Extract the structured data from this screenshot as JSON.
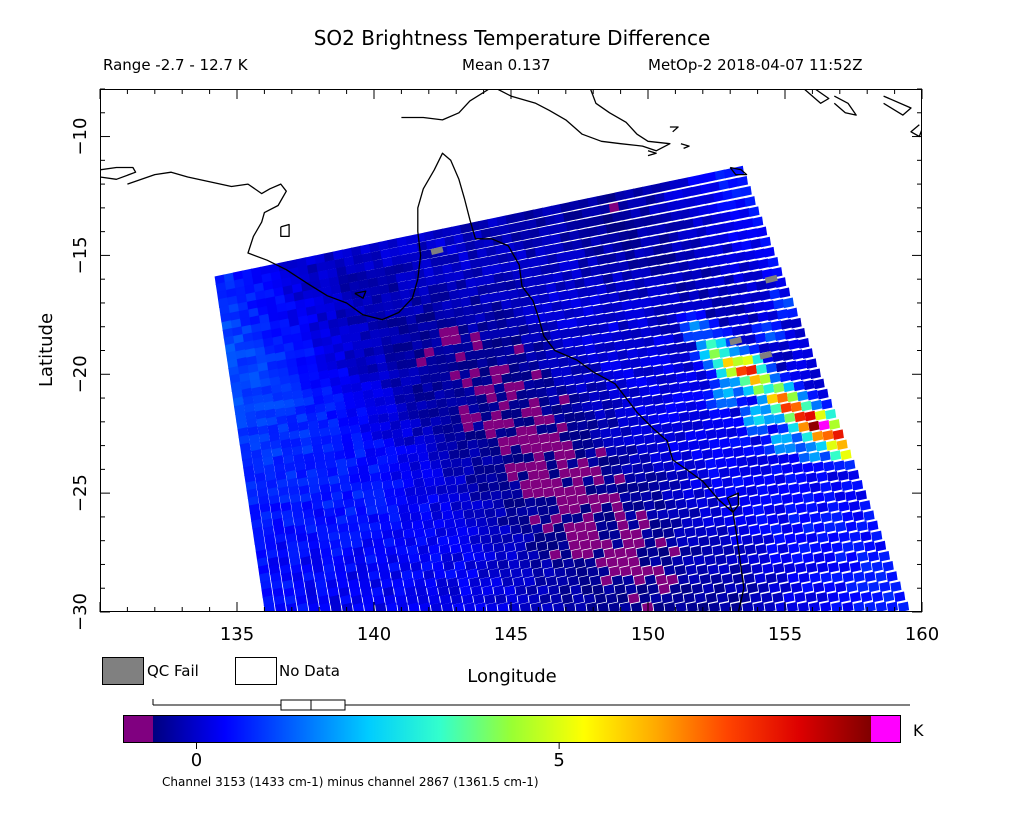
{
  "header": {
    "title": "SO2 Brightness Temperature Difference",
    "range": "Range -2.7 - 12.7 K",
    "mean": "Mean 0.137",
    "satellite": "MetOp-2 2018-04-07 11:52Z"
  },
  "legend": {
    "qc_fail_label": "QC Fail",
    "no_data_label": "No Data",
    "qc_fail_color": "#808080",
    "no_data_color": "#ffffff"
  },
  "colorbar": {
    "unit": "K",
    "caption": "Channel 3153 (1433 cm-1) minus channel 2867 (1361.5 cm-1)",
    "vmin": -0.6,
    "vmax": 9.3,
    "under_color": "#800080",
    "over_color": "#ff00ff",
    "stops": [
      "#000080",
      "#0000ff",
      "#0066ff",
      "#00ccff",
      "#33ffcc",
      "#99ff33",
      "#ffff00",
      "#ffaa00",
      "#ff4400",
      "#dd0000",
      "#800000"
    ],
    "ticks": [
      0,
      5
    ],
    "tick_labels": [
      "0",
      "5"
    ]
  },
  "chart_data": {
    "type": "heatmap",
    "title": "SO2 Brightness Temperature Difference",
    "xlabel": "Longitude",
    "ylabel": "Latitude",
    "xlim": [
      130,
      160
    ],
    "ylim": [
      -30,
      -8
    ],
    "xticks": [
      135,
      140,
      145,
      150,
      155,
      160
    ],
    "yticks": [
      -10,
      -15,
      -20,
      -25,
      -30
    ],
    "value_range_K": [
      -2.7,
      12.7
    ],
    "mean_K": 0.137,
    "swath_corners_lonlat": [
      [
        134.2,
        -15.9
      ],
      [
        153.4,
        -11.2
      ],
      [
        159.6,
        -30
      ],
      [
        136.0,
        -30
      ]
    ],
    "background_K": {
      "west_edge": 0.8,
      "center": -0.5,
      "east_edge": 0.4
    },
    "so2_plume_K": [
      {
        "lon": 151.8,
        "lat": -18.0,
        "value": 1.5
      },
      {
        "lon": 152.5,
        "lat": -19.0,
        "value": 4.5
      },
      {
        "lon": 153.0,
        "lat": -19.6,
        "value": 6.0
      },
      {
        "lon": 153.6,
        "lat": -19.8,
        "value": 8.5
      },
      {
        "lon": 154.0,
        "lat": -20.3,
        "value": 6.5
      },
      {
        "lon": 154.8,
        "lat": -21.0,
        "value": 7.5
      },
      {
        "lon": 155.2,
        "lat": -21.4,
        "value": 8.0
      },
      {
        "lon": 155.8,
        "lat": -21.9,
        "value": 9.5
      },
      {
        "lon": 156.3,
        "lat": -22.2,
        "value": 11.0
      },
      {
        "lon": 156.8,
        "lat": -22.6,
        "value": 8.5
      },
      {
        "lon": 157.2,
        "lat": -23.1,
        "value": 7.0
      },
      {
        "lon": 152.8,
        "lat": -20.8,
        "value": 2.5
      },
      {
        "lon": 154.0,
        "lat": -21.8,
        "value": 3.0
      },
      {
        "lon": 155.0,
        "lat": -22.8,
        "value": 2.5
      },
      {
        "lon": 156.0,
        "lat": -23.4,
        "value": 2.0
      },
      {
        "lon": 154.4,
        "lat": -18.2,
        "value": 1.2
      },
      {
        "lon": 155.0,
        "lat": -17.0,
        "value": 1.0
      }
    ],
    "qc_fail_pixels": [
      {
        "lon": 154.5,
        "lat": -16.0
      },
      {
        "lon": 153.2,
        "lat": -18.6
      },
      {
        "lon": 154.3,
        "lat": -19.2
      },
      {
        "lon": 142.3,
        "lat": -14.8
      }
    ],
    "coastline_lonlat": [
      [
        [
          131.0,
          -12.0
        ],
        [
          132.0,
          -11.6
        ],
        [
          132.6,
          -11.5
        ],
        [
          133.2,
          -11.7
        ],
        [
          134.0,
          -11.9
        ],
        [
          134.8,
          -12.1
        ],
        [
          135.4,
          -12.0
        ],
        [
          135.9,
          -12.4
        ],
        [
          136.2,
          -12.2
        ],
        [
          136.6,
          -12.0
        ],
        [
          136.8,
          -12.3
        ],
        [
          136.5,
          -12.9
        ],
        [
          136.0,
          -13.2
        ],
        [
          135.9,
          -13.6
        ],
        [
          135.6,
          -14.2
        ],
        [
          135.4,
          -14.9
        ],
        [
          136.1,
          -15.2
        ],
        [
          136.8,
          -15.6
        ],
        [
          137.6,
          -16.2
        ],
        [
          138.3,
          -16.7
        ],
        [
          139.0,
          -17.0
        ],
        [
          139.6,
          -17.5
        ],
        [
          140.3,
          -17.7
        ],
        [
          140.9,
          -17.4
        ],
        [
          141.4,
          -16.8
        ],
        [
          141.6,
          -16.0
        ],
        [
          141.7,
          -15.0
        ],
        [
          141.6,
          -14.0
        ],
        [
          141.6,
          -13.0
        ],
        [
          141.8,
          -12.2
        ],
        [
          142.2,
          -11.4
        ],
        [
          142.5,
          -10.7
        ],
        [
          142.8,
          -11.0
        ],
        [
          143.1,
          -11.8
        ],
        [
          143.3,
          -12.6
        ],
        [
          143.5,
          -13.5
        ],
        [
          143.7,
          -14.3
        ],
        [
          144.3,
          -14.3
        ],
        [
          144.9,
          -14.6
        ],
        [
          145.3,
          -15.4
        ],
        [
          145.4,
          -16.3
        ],
        [
          145.8,
          -16.9
        ],
        [
          146.0,
          -17.6
        ],
        [
          146.2,
          -18.4
        ],
        [
          146.6,
          -19.0
        ],
        [
          147.4,
          -19.4
        ],
        [
          148.0,
          -19.9
        ],
        [
          148.8,
          -20.4
        ],
        [
          149.2,
          -21.0
        ],
        [
          149.6,
          -21.6
        ],
        [
          150.2,
          -22.3
        ],
        [
          150.7,
          -22.8
        ],
        [
          150.9,
          -23.6
        ],
        [
          151.4,
          -24.0
        ],
        [
          152.0,
          -24.5
        ],
        [
          152.6,
          -25.3
        ],
        [
          153.1,
          -25.8
        ],
        [
          153.2,
          -26.5
        ],
        [
          153.3,
          -27.3
        ],
        [
          153.4,
          -28.2
        ],
        [
          153.5,
          -29.0
        ],
        [
          153.3,
          -30.0
        ]
      ],
      [
        [
          130.0,
          -11.4
        ],
        [
          130.6,
          -11.3
        ],
        [
          131.2,
          -11.3
        ],
        [
          131.3,
          -11.5
        ],
        [
          130.6,
          -11.8
        ],
        [
          130.0,
          -11.7
        ]
      ],
      [
        [
          136.6,
          -13.8
        ],
        [
          136.9,
          -13.7
        ],
        [
          136.9,
          -14.2
        ],
        [
          136.6,
          -14.2
        ],
        [
          136.6,
          -13.8
        ]
      ],
      [
        [
          141.0,
          -9.2
        ],
        [
          141.8,
          -9.2
        ],
        [
          142.5,
          -9.3
        ],
        [
          143.1,
          -9.0
        ],
        [
          143.5,
          -8.5
        ],
        [
          144.2,
          -8.0
        ]
      ],
      [
        [
          144.5,
          -8.0
        ],
        [
          145.0,
          -8.3
        ],
        [
          145.9,
          -8.6
        ],
        [
          146.4,
          -8.9
        ],
        [
          147.0,
          -9.3
        ],
        [
          147.6,
          -9.9
        ],
        [
          148.3,
          -10.2
        ],
        [
          149.0,
          -10.3
        ],
        [
          149.8,
          -10.4
        ],
        [
          150.3,
          -10.6
        ],
        [
          150.8,
          -10.3
        ],
        [
          150.0,
          -10.2
        ],
        [
          149.6,
          -9.9
        ],
        [
          149.2,
          -9.4
        ],
        [
          148.6,
          -9.0
        ],
        [
          148.1,
          -8.6
        ],
        [
          147.9,
          -8.0
        ]
      ],
      [
        [
          153.0,
          -11.3
        ],
        [
          153.4,
          -11.4
        ],
        [
          153.6,
          -11.6
        ],
        [
          153.2,
          -11.6
        ],
        [
          153.0,
          -11.3
        ]
      ],
      [
        [
          155.7,
          -8.0
        ],
        [
          156.3,
          -8.6
        ],
        [
          156.6,
          -8.4
        ],
        [
          156.1,
          -8.0
        ]
      ],
      [
        [
          156.8,
          -8.3
        ],
        [
          157.3,
          -8.6
        ],
        [
          157.6,
          -9.1
        ],
        [
          157.2,
          -9.0
        ],
        [
          156.8,
          -8.6
        ]
      ],
      [
        [
          158.6,
          -8.3
        ],
        [
          159.6,
          -8.8
        ],
        [
          159.3,
          -9.1
        ],
        [
          158.6,
          -8.6
        ]
      ],
      [
        [
          159.9,
          -9.5
        ],
        [
          159.6,
          -9.8
        ],
        [
          159.9,
          -10.0
        ],
        [
          160.0,
          -9.7
        ]
      ],
      [
        [
          150.0,
          -10.6
        ],
        [
          150.3,
          -10.7
        ],
        [
          150.0,
          -10.8
        ]
      ],
      [
        [
          151.2,
          -10.3
        ],
        [
          151.5,
          -10.4
        ],
        [
          151.3,
          -10.5
        ]
      ],
      [
        [
          150.8,
          -9.6
        ],
        [
          151.1,
          -9.6
        ],
        [
          150.9,
          -9.8
        ]
      ],
      [
        [
          152.9,
          -25.2
        ],
        [
          153.3,
          -25.0
        ],
        [
          153.3,
          -25.5
        ],
        [
          153.1,
          -25.8
        ],
        [
          152.9,
          -25.2
        ]
      ],
      [
        [
          139.3,
          -16.6
        ],
        [
          139.7,
          -16.5
        ],
        [
          139.6,
          -16.8
        ],
        [
          139.3,
          -16.6
        ]
      ]
    ]
  }
}
